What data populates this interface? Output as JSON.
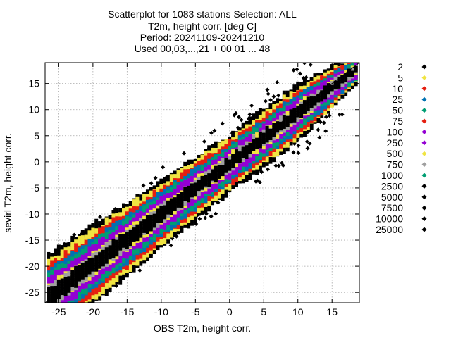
{
  "chart_data": {
    "type": "scatter",
    "title_lines": [
      "Scatterplot for 1083 stations Selection: ALL",
      "T2m, height corr. [deg C]",
      "Period: 20241109-20241210",
      "Used 00,03,...,21 + 00 01 ... 48"
    ],
    "xlabel": "OBS T2m, height corr.",
    "ylabel": "sevirl T2m, height corr.",
    "xlim": [
      -27,
      19
    ],
    "ylim": [
      -27,
      19
    ],
    "x_ticks": [
      -25,
      -20,
      -15,
      -10,
      -5,
      0,
      5,
      10,
      15
    ],
    "y_ticks": [
      -25,
      -20,
      -15,
      -10,
      -5,
      0,
      5,
      10,
      15
    ],
    "grid": true,
    "diagonal_line": true,
    "legend_position": "right",
    "legend": [
      {
        "label": "2",
        "color": "#000000"
      },
      {
        "label": "5",
        "color": "#f0e442"
      },
      {
        "label": "10",
        "color": "#e51e10"
      },
      {
        "label": "25",
        "color": "#0072b2"
      },
      {
        "label": "50",
        "color": "#009e73"
      },
      {
        "label": "75",
        "color": "#e51e10"
      },
      {
        "label": "100",
        "color": "#9400d3"
      },
      {
        "label": "250",
        "color": "#9400d3"
      },
      {
        "label": "500",
        "color": "#f0e442"
      },
      {
        "label": "750",
        "color": "#a0a0a0"
      },
      {
        "label": "1000",
        "color": "#009e73"
      },
      {
        "label": "2500",
        "color": "#000000"
      },
      {
        "label": "5000",
        "color": "#000000"
      },
      {
        "label": "7500",
        "color": "#000000"
      },
      {
        "label": "10000",
        "color": "#000000"
      },
      {
        "label": "25000",
        "color": "#000000"
      }
    ],
    "density_bands": [
      {
        "level": "2",
        "color": "#000000",
        "halfwidth": 5.4
      },
      {
        "level": "5",
        "color": "#f0e442",
        "halfwidth": 4.7
      },
      {
        "level": "10",
        "color": "#e51e10",
        "halfwidth": 4.0
      },
      {
        "level": "25",
        "color": "#0072b2",
        "halfwidth": 3.4
      },
      {
        "level": "50",
        "color": "#009e73",
        "halfwidth": 2.9
      },
      {
        "level": "100",
        "color": "#9400d3",
        "halfwidth": 2.4
      },
      {
        "level": "500",
        "color": "#f0e442",
        "halfwidth": 1.5
      },
      {
        "level": "750",
        "color": "#a0a0a0",
        "halfwidth": 1.25
      },
      {
        "level": "2500",
        "color": "#000000",
        "halfwidth": 1.0
      }
    ]
  }
}
